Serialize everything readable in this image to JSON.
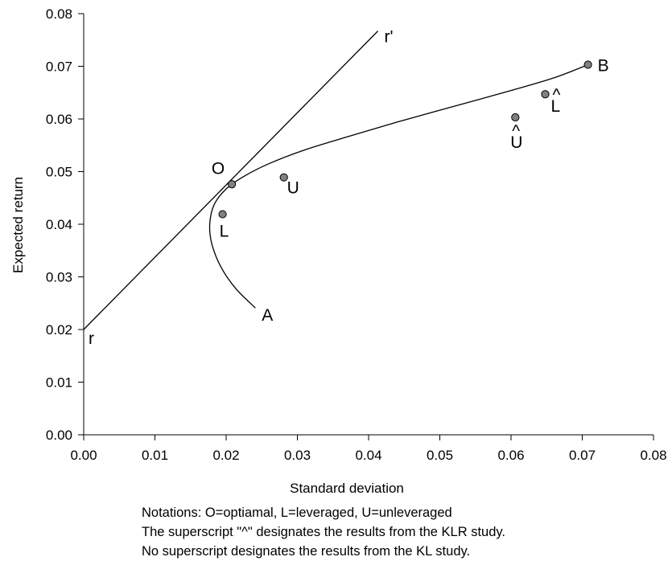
{
  "chart_data": {
    "type": "scatter",
    "title": "",
    "xlabel": "Standard deviation",
    "ylabel": "Expected return",
    "xlim": [
      0,
      0.08
    ],
    "ylim": [
      0,
      0.08
    ],
    "x_ticks": [
      "0.00",
      "0.01",
      "0.02",
      "0.03",
      "0.04",
      "0.05",
      "0.06",
      "0.07",
      "0.08"
    ],
    "y_ticks": [
      "0.00",
      "0.01",
      "0.02",
      "0.03",
      "0.04",
      "0.05",
      "0.06",
      "0.07",
      "0.08"
    ],
    "grid": false,
    "capital_market_line": {
      "points": [
        {
          "x": 0.0,
          "y": 0.02
        },
        {
          "x": 0.0413,
          "y": 0.0767
        }
      ],
      "start_label": "r",
      "end_label": "r'"
    },
    "efficient_frontier": {
      "points": [
        {
          "x": 0.0241,
          "y": 0.0241
        },
        {
          "x": 0.0214,
          "y": 0.0277
        },
        {
          "x": 0.0193,
          "y": 0.0318
        },
        {
          "x": 0.018,
          "y": 0.0362
        },
        {
          "x": 0.0177,
          "y": 0.04
        },
        {
          "x": 0.0183,
          "y": 0.0437
        },
        {
          "x": 0.02,
          "y": 0.0467
        },
        {
          "x": 0.0225,
          "y": 0.0491
        },
        {
          "x": 0.026,
          "y": 0.0515
        },
        {
          "x": 0.031,
          "y": 0.0541
        },
        {
          "x": 0.037,
          "y": 0.0566
        },
        {
          "x": 0.044,
          "y": 0.0594
        },
        {
          "x": 0.052,
          "y": 0.0624
        },
        {
          "x": 0.06,
          "y": 0.0654
        },
        {
          "x": 0.066,
          "y": 0.0678
        },
        {
          "x": 0.0708,
          "y": 0.0703
        }
      ]
    },
    "points": [
      {
        "label": "A",
        "x": 0.0241,
        "y": 0.0241,
        "marker": false
      },
      {
        "label": "B",
        "x": 0.0708,
        "y": 0.0703,
        "marker": true
      },
      {
        "label": "O",
        "x": 0.021,
        "y": 0.0483,
        "marker": false
      },
      {
        "label": "",
        "x": 0.0208,
        "y": 0.0476,
        "marker": true
      },
      {
        "label": "L",
        "x": 0.0195,
        "y": 0.0419,
        "marker": true
      },
      {
        "label": "U",
        "x": 0.0281,
        "y": 0.0489,
        "marker": true
      },
      {
        "label": "L",
        "hat": "^",
        "x": 0.0648,
        "y": 0.0647,
        "marker": true
      },
      {
        "label": "U",
        "hat": "^",
        "x": 0.0606,
        "y": 0.0603,
        "marker": true
      }
    ],
    "marker_color": "#808080"
  },
  "notes": [
    "Notations: O=optiamal, L=leveraged, U=unleveraged",
    "The superscript \"^\" designates the results from the KLR study.",
    "No superscript designates the results from the KL study."
  ]
}
